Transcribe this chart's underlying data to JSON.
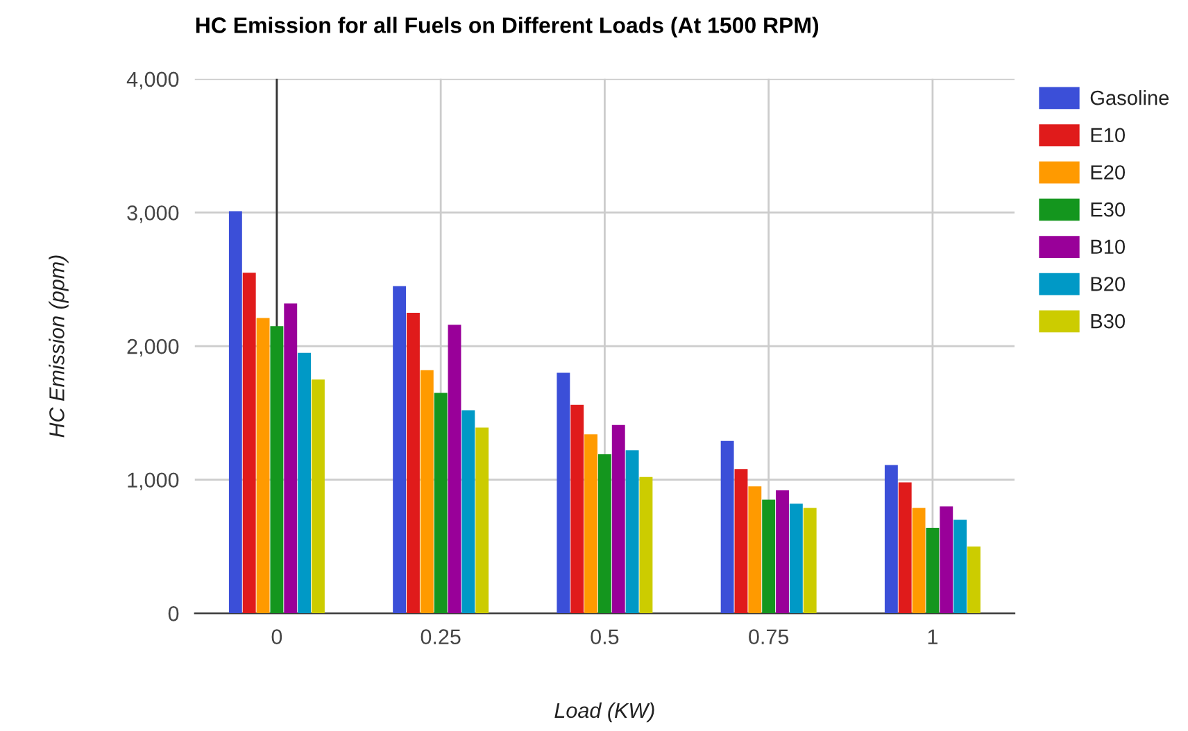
{
  "chart_data": {
    "type": "bar",
    "title": "HC Emission for all Fuels on Different Loads (At 1500 RPM)",
    "xlabel": "Load (KW)",
    "ylabel": "HC Emission (ppm)",
    "x": [
      0,
      0.25,
      0.5,
      0.75,
      1
    ],
    "series": [
      {
        "name": "Gasoline",
        "color": "#3b4fd8",
        "values": [
          3010,
          2450,
          1800,
          1290,
          1110
        ]
      },
      {
        "name": "E10",
        "color": "#e01b1b",
        "values": [
          2550,
          2250,
          1560,
          1080,
          980
        ]
      },
      {
        "name": "E20",
        "color": "#ff9a00",
        "values": [
          2210,
          1820,
          1340,
          950,
          790
        ]
      },
      {
        "name": "E30",
        "color": "#14961e",
        "values": [
          2150,
          1650,
          1190,
          850,
          640
        ]
      },
      {
        "name": "B10",
        "color": "#990099",
        "values": [
          2320,
          2160,
          1410,
          920,
          800
        ]
      },
      {
        "name": "B20",
        "color": "#0099c6",
        "values": [
          1950,
          1520,
          1220,
          820,
          700
        ]
      },
      {
        "name": "B30",
        "color": "#cccc00",
        "values": [
          1750,
          1390,
          1020,
          790,
          500
        ]
      }
    ],
    "xlim": [
      -0.125,
      1.125
    ],
    "xticks": [
      0,
      0.25,
      0.5,
      0.75,
      1
    ],
    "ylim": [
      0,
      4000
    ],
    "yticks": [
      0,
      {
        "value": 1000,
        "label": "1,000"
      },
      {
        "value": 2000,
        "label": "2,000"
      },
      {
        "value": 3000,
        "label": "3,000"
      },
      {
        "value": 4000,
        "label": "4,000"
      }
    ],
    "ref_lines": [
      {
        "axis": "x",
        "value": 0,
        "color": "#333333"
      }
    ],
    "grid": true,
    "legend": "right"
  }
}
